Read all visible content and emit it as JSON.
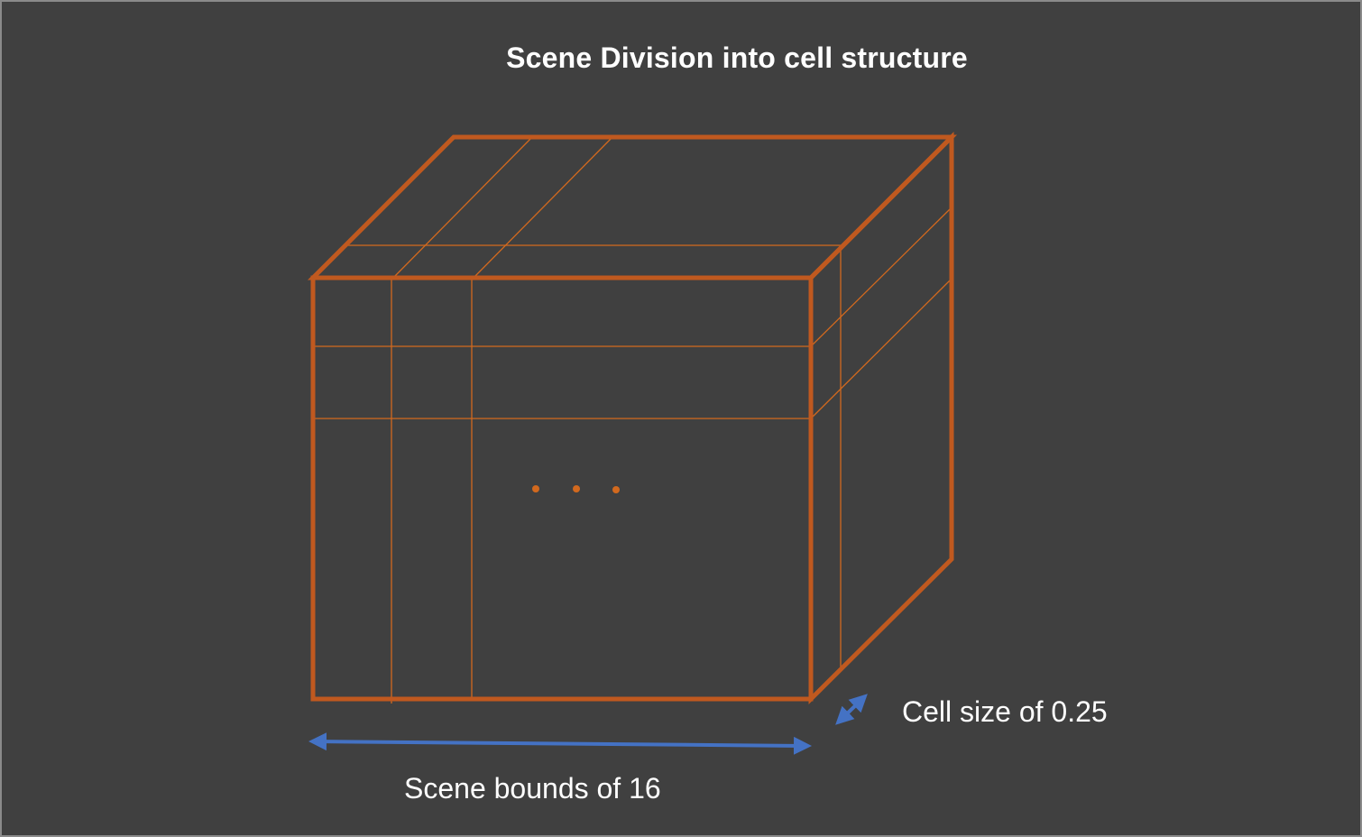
{
  "diagram": {
    "title": "Scene Division into cell structure",
    "cell_size_label": "Cell size of 0.25",
    "scene_bounds_label": "Scene bounds of 16",
    "colors": {
      "background": "#404040",
      "cube_edge": "#c0591f",
      "grid_line": "#d2691e",
      "arrow": "#4472c4",
      "text": "#ffffff"
    },
    "ellipsis_marker": "three-dots"
  }
}
